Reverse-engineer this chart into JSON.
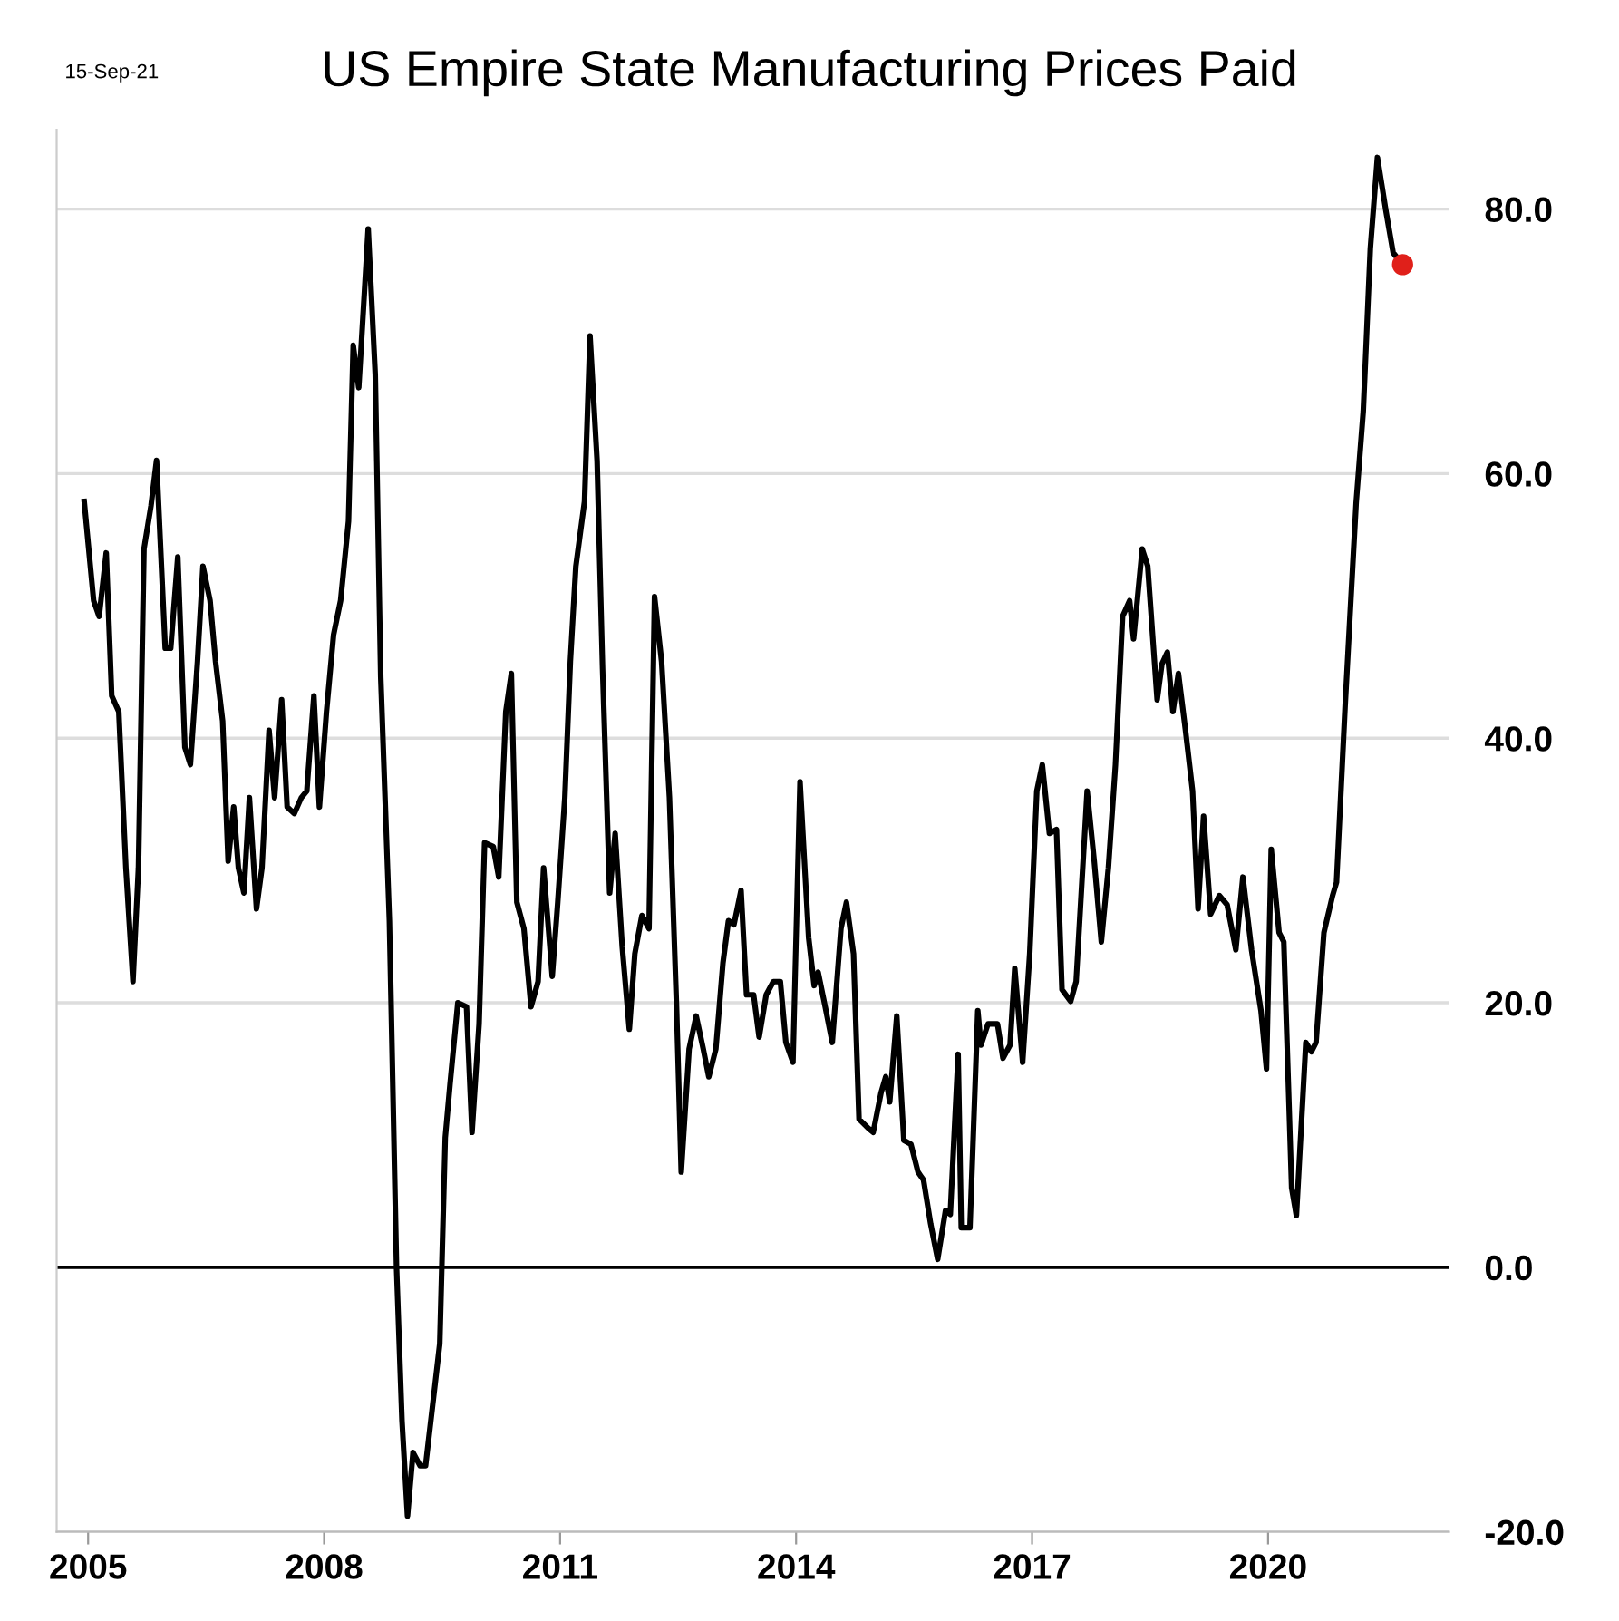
{
  "chart_data": {
    "type": "line",
    "title": "US Empire State Manufacturing Prices Paid",
    "annotations": [
      "15-Sep-21"
    ],
    "xlim": [
      2004.6,
      2022.3
    ],
    "xticks": [
      2005,
      2008,
      2011,
      2014,
      2017,
      2020
    ],
    "ylim": [
      -20,
      86
    ],
    "yticks": [
      {
        "value": -20,
        "label": "-20.0"
      },
      {
        "value": 0,
        "label": "0.0"
      },
      {
        "value": 20,
        "label": "20.0"
      },
      {
        "value": 40,
        "label": "40.0"
      },
      {
        "value": 60,
        "label": "60.0"
      },
      {
        "value": 80,
        "label": "80.0"
      }
    ],
    "grid": "y",
    "legend": false,
    "marker": "none",
    "line_style": "solid",
    "ref_lines": [
      {
        "axis": "y",
        "value": 0,
        "label": null,
        "color": "#000000"
      }
    ],
    "series": [
      {
        "color": "#000000",
        "x": [
          2004.95,
          2005.07,
          2005.14,
          2005.23,
          2005.3,
          2005.39,
          2005.48,
          2005.57,
          2005.64,
          2005.71,
          2005.8,
          2005.87,
          2005.98,
          2006.05,
          2006.14,
          2006.23,
          2006.3,
          2006.39,
          2006.46,
          2006.55,
          2006.62,
          2006.71,
          2006.78,
          2006.85,
          2006.91,
          2006.98,
          2007.05,
          2007.14,
          2007.21,
          2007.3,
          2007.37,
          2007.46,
          2007.53,
          2007.62,
          2007.71,
          2007.78,
          2007.87,
          2007.94,
          2008.03,
          2008.12,
          2008.21,
          2008.31,
          2008.37,
          2008.44,
          2008.56,
          2008.65,
          2008.72,
          2008.83,
          2008.92,
          2008.99,
          2009.06,
          2009.13,
          2009.22,
          2009.29,
          2009.38,
          2009.47,
          2009.54,
          2009.6,
          2009.7,
          2009.81,
          2009.88,
          2009.97,
          2010.04,
          2010.15,
          2010.22,
          2010.31,
          2010.38,
          2010.45,
          2010.54,
          2010.63,
          2010.72,
          2010.79,
          2010.9,
          2010.97,
          2011.06,
          2011.13,
          2011.2,
          2011.31,
          2011.38,
          2011.47,
          2011.54,
          2011.63,
          2011.7,
          2011.79,
          2011.88,
          2011.95,
          2012.04,
          2012.13,
          2012.2,
          2012.29,
          2012.39,
          2012.48,
          2012.54,
          2012.64,
          2012.73,
          2012.82,
          2012.89,
          2012.98,
          2013.07,
          2013.14,
          2013.21,
          2013.3,
          2013.37,
          2013.46,
          2013.53,
          2013.62,
          2013.71,
          2013.8,
          2013.87,
          2013.96,
          2014.05,
          2014.16,
          2014.23,
          2014.28,
          2014.37,
          2014.46,
          2014.57,
          2014.64,
          2014.73,
          2014.8,
          2014.92,
          2014.98,
          2015.08,
          2015.14,
          2015.19,
          2015.28,
          2015.37,
          2015.46,
          2015.55,
          2015.62,
          2015.71,
          2015.8,
          2015.9,
          2015.96,
          2016.06,
          2016.1,
          2016.21,
          2016.31,
          2016.35,
          2016.44,
          2016.56,
          2016.63,
          2016.72,
          2016.78,
          2016.88,
          2016.97,
          2017.06,
          2017.13,
          2017.22,
          2017.31,
          2017.38,
          2017.49,
          2017.56,
          2017.7,
          2017.79,
          2017.88,
          2017.97,
          2018.06,
          2018.15,
          2018.24,
          2018.29,
          2018.4,
          2018.47,
          2018.54,
          2018.59,
          2018.65,
          2018.72,
          2018.79,
          2018.86,
          2018.95,
          2019.04,
          2019.11,
          2019.18,
          2019.27,
          2019.38,
          2019.48,
          2019.59,
          2019.68,
          2019.79,
          2019.91,
          2019.98,
          2020.04,
          2020.14,
          2020.2,
          2020.3,
          2020.36,
          2020.48,
          2020.55,
          2020.61,
          2020.71,
          2020.82,
          2020.87,
          2020.98,
          2021.12,
          2021.21,
          2021.3,
          2021.39,
          2021.5,
          2021.59,
          2021.71
        ],
        "values": [
          57.9,
          50.4,
          49.2,
          54,
          43.2,
          42,
          30.2,
          21.6,
          30.2,
          54.3,
          57.6,
          61,
          46.8,
          46.8,
          53.7,
          39.3,
          38,
          45.8,
          53,
          50.4,
          45.8,
          41.3,
          30.7,
          34.8,
          30.2,
          28.3,
          35.5,
          27.1,
          30.2,
          40.6,
          35.5,
          42.9,
          34.8,
          34.3,
          35.5,
          36,
          43.2,
          34.8,
          42,
          47.8,
          50.4,
          56.4,
          69.7,
          66.5,
          78.5,
          67.5,
          44.6,
          26.2,
          0.1,
          -11.6,
          -18.8,
          -14,
          -15,
          -15,
          -10.4,
          -5.8,
          9.8,
          13.8,
          20,
          19.7,
          10.2,
          18.4,
          32.1,
          31.8,
          29.5,
          42,
          44.9,
          27.6,
          25.6,
          19.7,
          21.6,
          30.2,
          22,
          27.6,
          35.5,
          45.8,
          53,
          57.9,
          70.4,
          61,
          45.2,
          28.3,
          32.8,
          24.2,
          18,
          23.7,
          26.6,
          25.6,
          50.7,
          45.8,
          35.5,
          19.7,
          7.2,
          16.5,
          19,
          16.5,
          14.4,
          16.5,
          23,
          26.2,
          25.9,
          28.5,
          20.6,
          20.6,
          17.4,
          20.6,
          21.6,
          21.6,
          17,
          15.5,
          36.7,
          24.9,
          21.3,
          22.3,
          19.7,
          17,
          25.6,
          27.6,
          23.7,
          11.2,
          10.5,
          10.2,
          13.2,
          14.4,
          12.5,
          19,
          9.6,
          9.3,
          7.2,
          6.6,
          3.3,
          0.6,
          4.3,
          4,
          16.1,
          3,
          3,
          19.4,
          16.8,
          18.4,
          18.4,
          15.8,
          16.8,
          22.6,
          15.5,
          23.7,
          36,
          38,
          32.8,
          33.1,
          21,
          20.1,
          21.6,
          36,
          30.7,
          24.6,
          30.2,
          38,
          49.2,
          50.4,
          47.5,
          54.3,
          53,
          47.1,
          42.9,
          45.6,
          46.5,
          42,
          44.9,
          40.6,
          36,
          27.1,
          34.1,
          26.7,
          28.1,
          27.4,
          24,
          29.5,
          24,
          19.4,
          15,
          31.6,
          25.3,
          24.6,
          6,
          3.9,
          17,
          16.3,
          17,
          25.3,
          28.1,
          29.1,
          42.5,
          57.8,
          64.7,
          77,
          83.9,
          79.8,
          76.7,
          75.8
        ]
      },
      {
        "type": "scatter",
        "color": "#e0201a",
        "marker": "circle",
        "x": [
          2021.71
        ],
        "values": [
          75.8
        ]
      }
    ]
  }
}
